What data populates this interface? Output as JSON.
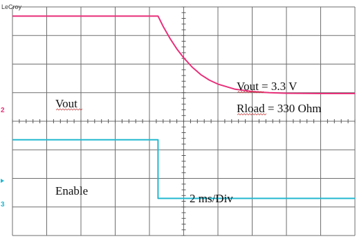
{
  "chart_data": {
    "type": "line",
    "instrument": "LeCroy",
    "timebase": "2 ms/Div",
    "x_divisions": 10,
    "y_divisions": 8,
    "xlim": [
      0,
      10
    ],
    "ylim": [
      0,
      8
    ],
    "series": [
      {
        "name": "Vout",
        "color": "#e8307a",
        "x": [
          0.0,
          4.25,
          4.4,
          4.6,
          4.8,
          5.0,
          5.25,
          5.5,
          5.75,
          6.0,
          6.5,
          7.0,
          7.5,
          8.0,
          9.0,
          10.0
        ],
        "y": [
          7.68,
          7.68,
          7.32,
          6.9,
          6.53,
          6.22,
          5.89,
          5.63,
          5.44,
          5.3,
          5.12,
          5.04,
          5.0,
          4.98,
          4.97,
          4.97
        ]
      },
      {
        "name": "Enable",
        "color": "#22b8d0",
        "x": [
          0.0,
          4.25,
          4.25,
          10.0
        ],
        "y": [
          3.35,
          3.35,
          1.3,
          1.3
        ]
      }
    ],
    "annotations": {
      "vout_label": "Vout",
      "enable_label": "Enable",
      "vout_spec": "Vout  = 3.3 V",
      "rload_spec": "Rload = 330 Ohm",
      "timebase_label": "2 ms/Div"
    },
    "channel_markers": [
      "2",
      "3"
    ],
    "grid": true
  }
}
